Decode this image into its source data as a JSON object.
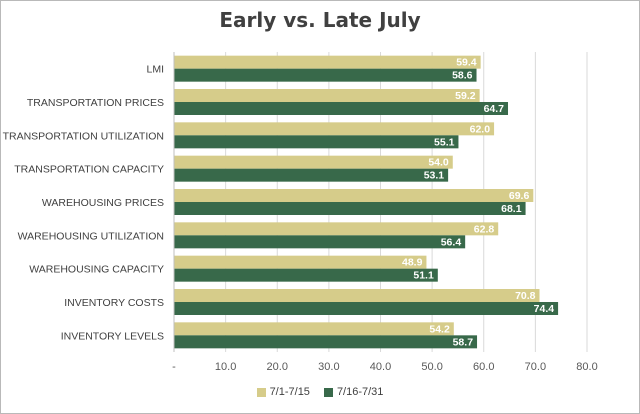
{
  "chart_data": {
    "type": "bar",
    "orientation": "horizontal",
    "title": "Early vs. Late July",
    "categories": [
      "LMI",
      "TRANSPORTATION PRICES",
      "TRANSPORTATION UTILIZATION",
      "TRANSPORTATION CAPACITY",
      "WAREHOUSING PRICES",
      "WAREHOUSING UTILIZATION",
      "WAREHOUSING CAPACITY",
      "INVENTORY COSTS",
      "INVENTORY LEVELS"
    ],
    "series": [
      {
        "name": "7/1-7/15",
        "color": "#d6cc8a",
        "values": [
          59.4,
          59.2,
          62.0,
          54.0,
          69.6,
          62.8,
          48.9,
          70.8,
          54.2
        ],
        "labels": [
          "59.4",
          "59.2",
          "62.0",
          "54.0",
          "69.6",
          "62.8",
          "48.9",
          "70.8",
          "54.2"
        ]
      },
      {
        "name": "7/16-7/31",
        "color": "#38694a",
        "values": [
          58.6,
          64.7,
          55.1,
          53.1,
          68.1,
          56.4,
          51.1,
          74.4,
          58.7
        ],
        "labels": [
          "58.6",
          "64.7",
          "55.1",
          "53.1",
          "68.1",
          "56.4",
          "51.1",
          "74.4",
          "58.7"
        ]
      }
    ],
    "xlim": [
      0,
      80
    ],
    "xticks": [
      0,
      10,
      20,
      30,
      40,
      50,
      60,
      70,
      80
    ],
    "xtick_labels": [
      "-",
      "10.0",
      "20.0",
      "30.0",
      "40.0",
      "50.0",
      "60.0",
      "70.0",
      "80.0"
    ],
    "grid": true,
    "legend_position": "bottom"
  }
}
